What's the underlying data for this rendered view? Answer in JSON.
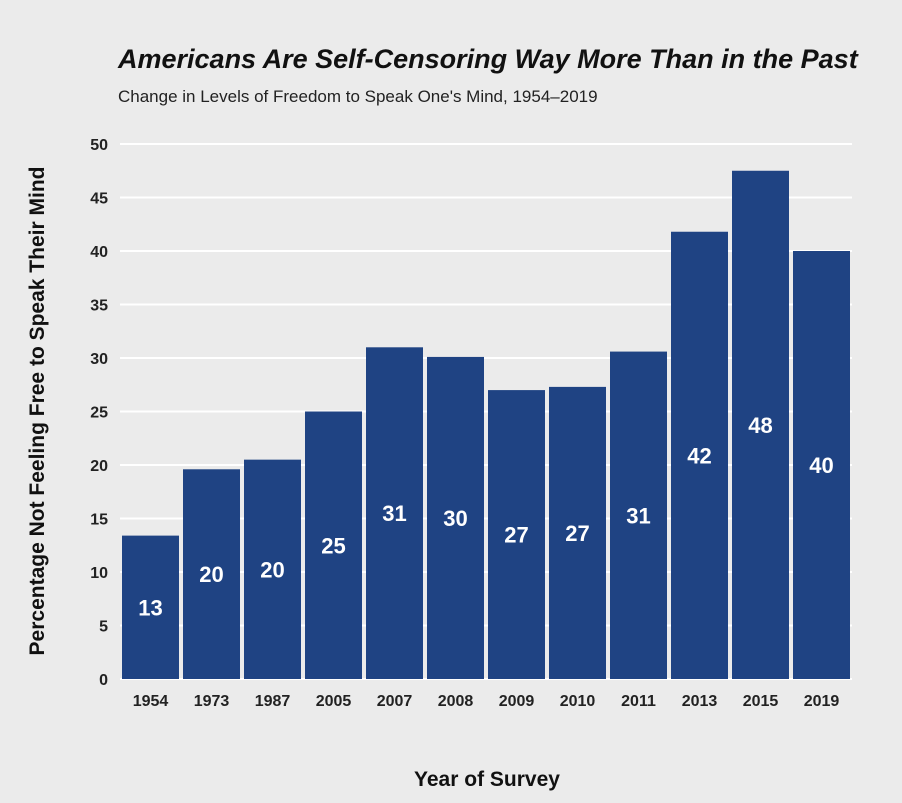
{
  "colors": {
    "background": "#ebebeb",
    "bar": "#1f4383",
    "gridline": "#ffffff",
    "data_label": "#ffffff"
  },
  "chart_data": {
    "type": "bar",
    "title": "Americans Are Self-Censoring Way More Than in the Past",
    "subtitle": "Change in Levels of Freedom to Speak One's Mind, 1954–2019",
    "xlabel": "Year of Survey",
    "ylabel": "Percentage Not Feeling Free to Speak Their Mind",
    "categories": [
      "1954",
      "1973",
      "1987",
      "2005",
      "2007",
      "2008",
      "2009",
      "2010",
      "2011",
      "2013",
      "2015",
      "2019"
    ],
    "values": [
      13.4,
      19.6,
      20.5,
      25,
      31,
      30.1,
      27,
      27.3,
      30.6,
      41.8,
      47.5,
      40
    ],
    "data_labels": [
      "13",
      "20",
      "20",
      "25",
      "31",
      "30",
      "27",
      "27",
      "31",
      "42",
      "48",
      "40"
    ],
    "ylim": [
      0,
      50
    ],
    "yticks": [
      0,
      5,
      10,
      15,
      20,
      25,
      30,
      35,
      40,
      45,
      50
    ],
    "grid": true,
    "legend": "none"
  }
}
